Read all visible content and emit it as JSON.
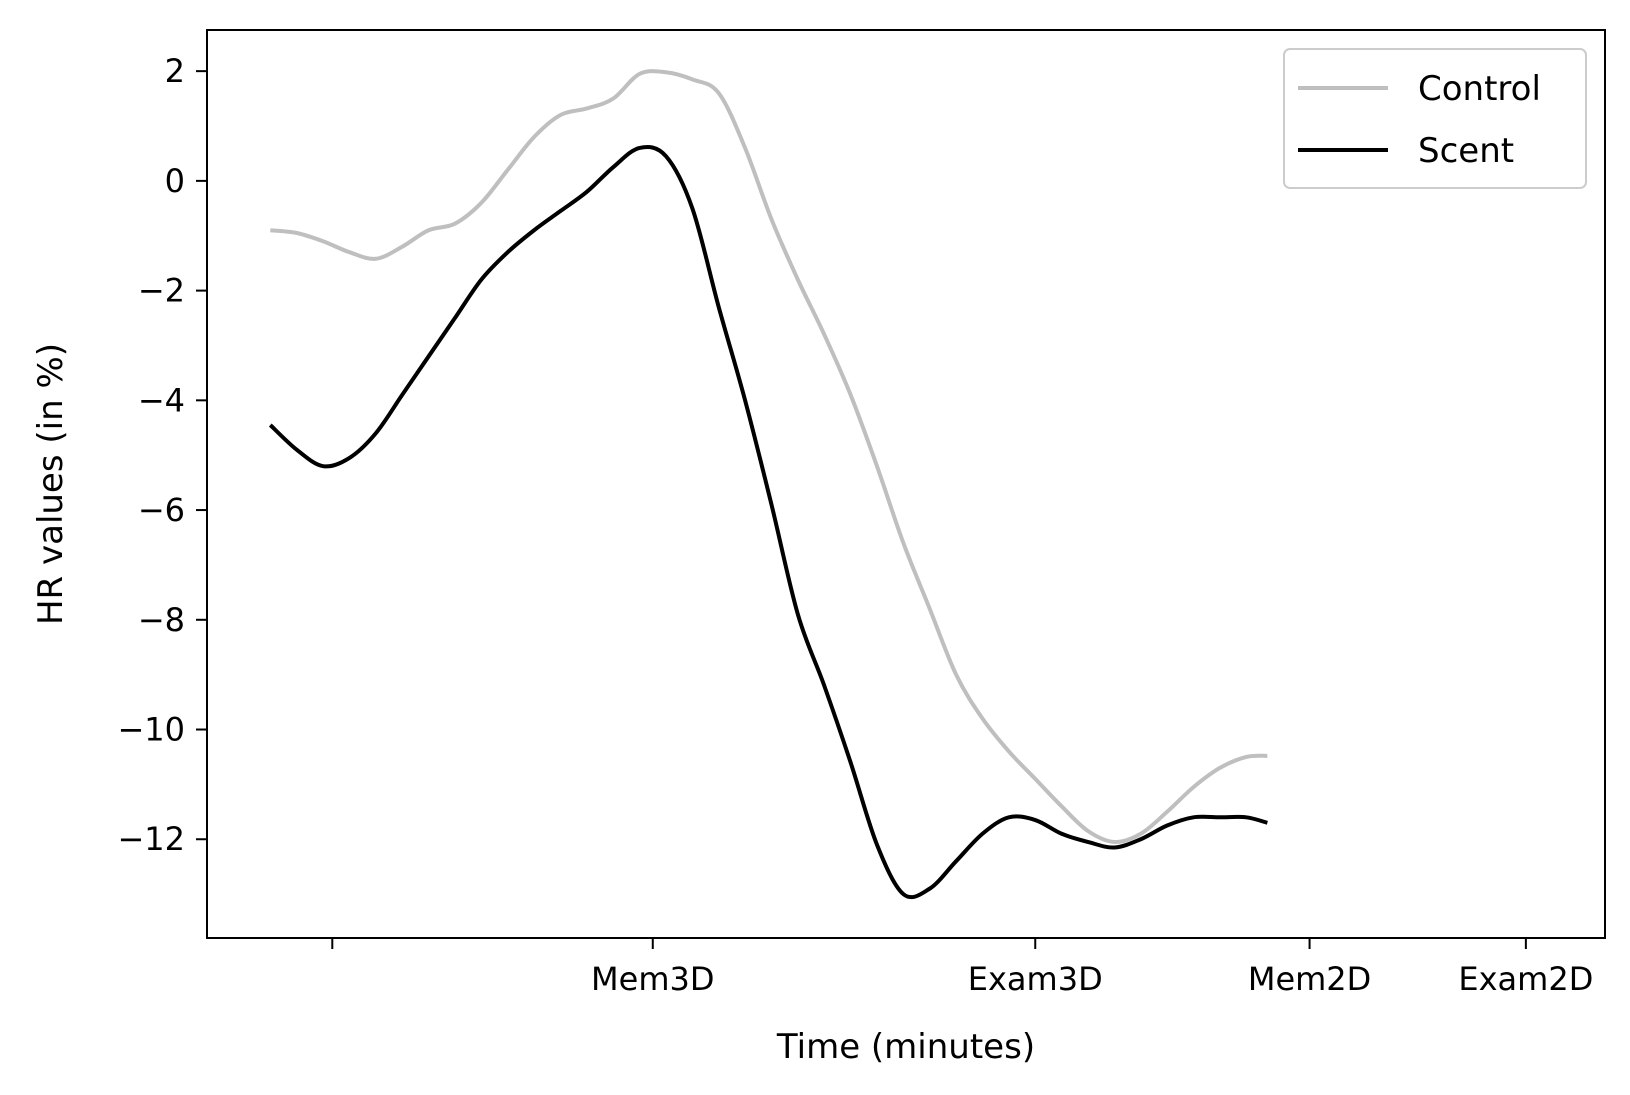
{
  "chart_data": {
    "type": "line",
    "title": "",
    "xlabel": "Time (minutes)",
    "ylabel": "HR values (in %)",
    "xlim": [
      -2.4,
      50.6
    ],
    "ylim": [
      -13.8,
      2.75
    ],
    "x_ticks": [
      {
        "value": 2.35,
        "label": ""
      },
      {
        "value": 14.5,
        "label": "Mem3D"
      },
      {
        "value": 29.0,
        "label": "Exam3D"
      },
      {
        "value": 39.4,
        "label": "Mem2D"
      },
      {
        "value": 47.6,
        "label": "Exam2D"
      }
    ],
    "y_ticks": [
      {
        "value": 2,
        "label": "2"
      },
      {
        "value": 0,
        "label": "0"
      },
      {
        "value": -2,
        "label": "−2"
      },
      {
        "value": -4,
        "label": "−4"
      },
      {
        "value": -6,
        "label": "−6"
      },
      {
        "value": -8,
        "label": "−8"
      },
      {
        "value": -10,
        "label": "−10"
      },
      {
        "value": -12,
        "label": "−12"
      }
    ],
    "legend": {
      "position": "top-right"
    },
    "grid": false,
    "series": [
      {
        "name": "Control",
        "color": "#bfbfbf",
        "points": [
          [
            0,
            -0.9
          ],
          [
            1,
            -0.95
          ],
          [
            2,
            -1.1
          ],
          [
            3,
            -1.3
          ],
          [
            4,
            -1.42
          ],
          [
            5,
            -1.2
          ],
          [
            6,
            -0.9
          ],
          [
            7,
            -0.78
          ],
          [
            8,
            -0.4
          ],
          [
            9,
            0.2
          ],
          [
            10,
            0.8
          ],
          [
            11,
            1.2
          ],
          [
            12,
            1.32
          ],
          [
            13,
            1.5
          ],
          [
            14,
            1.95
          ],
          [
            15,
            1.98
          ],
          [
            16,
            1.85
          ],
          [
            17,
            1.6
          ],
          [
            18,
            0.6
          ],
          [
            19,
            -0.7
          ],
          [
            20,
            -1.8
          ],
          [
            21,
            -2.8
          ],
          [
            22,
            -3.9
          ],
          [
            23,
            -5.2
          ],
          [
            24,
            -6.6
          ],
          [
            25,
            -7.8
          ],
          [
            26,
            -9.0
          ],
          [
            27,
            -9.8
          ],
          [
            28,
            -10.4
          ],
          [
            29,
            -10.9
          ],
          [
            30,
            -11.4
          ],
          [
            31,
            -11.85
          ],
          [
            32,
            -12.05
          ],
          [
            33,
            -11.9
          ],
          [
            34,
            -11.5
          ],
          [
            35,
            -11.05
          ],
          [
            36,
            -10.7
          ],
          [
            37,
            -10.5
          ],
          [
            37.8,
            -10.48
          ]
        ]
      },
      {
        "name": "Scent",
        "color": "#000000",
        "points": [
          [
            0,
            -4.45
          ],
          [
            1,
            -4.9
          ],
          [
            2,
            -5.2
          ],
          [
            3,
            -5.05
          ],
          [
            4,
            -4.6
          ],
          [
            5,
            -3.9
          ],
          [
            6,
            -3.2
          ],
          [
            7,
            -2.5
          ],
          [
            8,
            -1.8
          ],
          [
            9,
            -1.3
          ],
          [
            10,
            -0.9
          ],
          [
            11,
            -0.55
          ],
          [
            12,
            -0.2
          ],
          [
            13,
            0.25
          ],
          [
            14,
            0.6
          ],
          [
            15,
            0.45
          ],
          [
            16,
            -0.5
          ],
          [
            17,
            -2.3
          ],
          [
            18,
            -4.0
          ],
          [
            19,
            -5.9
          ],
          [
            20,
            -7.9
          ],
          [
            21,
            -9.2
          ],
          [
            22,
            -10.6
          ],
          [
            23,
            -12.1
          ],
          [
            24,
            -13.0
          ],
          [
            25,
            -12.9
          ],
          [
            26,
            -12.4
          ],
          [
            27,
            -11.9
          ],
          [
            28,
            -11.6
          ],
          [
            29,
            -11.65
          ],
          [
            30,
            -11.9
          ],
          [
            31,
            -12.05
          ],
          [
            32,
            -12.15
          ],
          [
            33,
            -12.0
          ],
          [
            34,
            -11.75
          ],
          [
            35,
            -11.6
          ],
          [
            36,
            -11.6
          ],
          [
            37,
            -11.6
          ],
          [
            37.8,
            -11.7
          ]
        ]
      }
    ]
  }
}
